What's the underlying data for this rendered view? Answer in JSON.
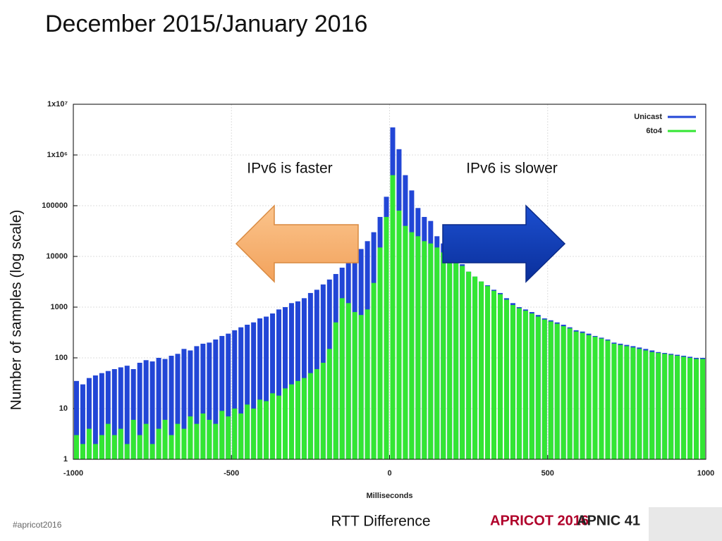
{
  "slide": {
    "title": "December 2015/January 2016",
    "caption": "RTT Difference",
    "hashtag": "#apricot2016",
    "logo_left": "APRICOT 2016",
    "logo_right": "APNIC 41"
  },
  "chart_data": {
    "type": "histogram",
    "ylabel": "Number of samples (log scale)",
    "xlabel": "Milliseconds",
    "annotations": [
      "IPv6 is faster",
      "IPv6 is slower"
    ],
    "log_y": true,
    "grid": true,
    "legend": "top-right",
    "overlay": true,
    "xlim": [
      -1000,
      1000
    ],
    "xticks": [
      -1000,
      -500,
      0,
      500,
      1000
    ],
    "ylim": [
      1,
      10000000
    ],
    "yticks": [
      1,
      10,
      100,
      1000,
      10000,
      100000,
      {
        "value": 1000000,
        "label": "1x10⁶"
      },
      {
        "value": 10000000,
        "label": "1x10⁷"
      }
    ],
    "bins": [
      -1000,
      -980,
      -960,
      -940,
      -920,
      -900,
      -880,
      -860,
      -840,
      -820,
      -800,
      -780,
      -760,
      -740,
      -720,
      -700,
      -680,
      -660,
      -640,
      -620,
      -600,
      -580,
      -560,
      -540,
      -520,
      -500,
      -480,
      -460,
      -440,
      -420,
      -400,
      -380,
      -360,
      -340,
      -320,
      -300,
      -280,
      -260,
      -240,
      -220,
      -200,
      -180,
      -160,
      -140,
      -120,
      -100,
      -80,
      -60,
      -40,
      -20,
      0,
      20,
      40,
      60,
      80,
      100,
      120,
      140,
      160,
      180,
      200,
      220,
      240,
      260,
      280,
      300,
      320,
      340,
      360,
      380,
      400,
      420,
      440,
      460,
      480,
      500,
      520,
      540,
      560,
      580,
      600,
      620,
      640,
      660,
      680,
      700,
      720,
      740,
      760,
      780,
      800,
      820,
      840,
      860,
      880,
      900,
      920,
      940,
      960,
      980,
      1000
    ],
    "series": [
      {
        "name": "Unicast",
        "color": "#2246d6",
        "values": [
          35,
          30,
          40,
          45,
          50,
          55,
          60,
          65,
          70,
          60,
          80,
          90,
          85,
          100,
          95,
          110,
          120,
          150,
          140,
          170,
          190,
          200,
          230,
          270,
          300,
          350,
          400,
          450,
          500,
          600,
          650,
          750,
          900,
          1000,
          1200,
          1300,
          1500,
          1900,
          2200,
          2800,
          3500,
          4500,
          6000,
          8000,
          10000,
          14000,
          20000,
          30000,
          60000,
          150000,
          3500000,
          1300000,
          400000,
          200000,
          90000,
          60000,
          50000,
          25000,
          18000,
          12000,
          9000,
          7000,
          5000,
          4000,
          3200,
          2700,
          2200,
          1900,
          1500,
          1200,
          1000,
          900,
          800,
          700,
          600,
          550,
          500,
          450,
          400,
          350,
          330,
          300,
          270,
          250,
          230,
          200,
          190,
          180,
          170,
          160,
          150,
          140,
          130,
          125,
          120,
          115,
          110,
          105,
          100,
          100
        ]
      },
      {
        "name": "6to4",
        "color": "#33e633",
        "values": [
          3,
          2,
          4,
          2,
          3,
          5,
          3,
          4,
          2,
          6,
          3,
          5,
          2,
          4,
          6,
          3,
          5,
          4,
          7,
          5,
          8,
          6,
          5,
          9,
          7,
          10,
          8,
          12,
          10,
          15,
          14,
          20,
          18,
          25,
          30,
          35,
          40,
          50,
          60,
          80,
          150,
          500,
          1500,
          1200,
          800,
          700,
          900,
          3000,
          15000,
          60000,
          400000,
          80000,
          40000,
          30000,
          25000,
          20000,
          18000,
          15000,
          12000,
          10000,
          8000,
          6500,
          5000,
          4000,
          3200,
          2600,
          2100,
          1800,
          1400,
          1100,
          950,
          850,
          750,
          650,
          570,
          520,
          470,
          420,
          380,
          330,
          310,
          280,
          260,
          240,
          220,
          190,
          180,
          170,
          160,
          150,
          140,
          130,
          125,
          120,
          115,
          110,
          105,
          100,
          95,
          95
        ]
      }
    ]
  }
}
